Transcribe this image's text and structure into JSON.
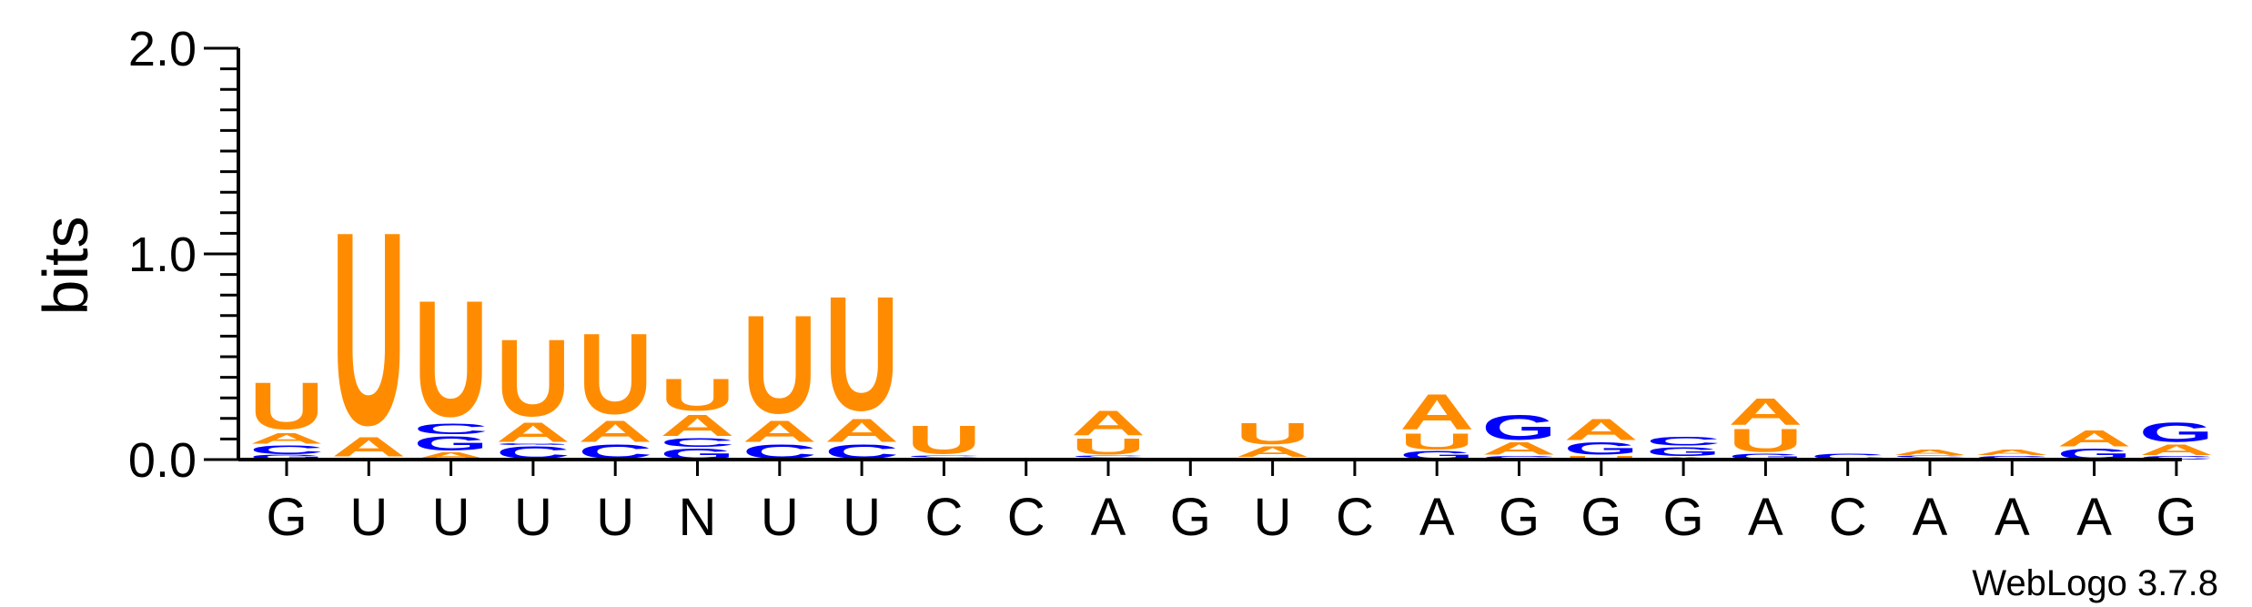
{
  "chart_data": {
    "type": "sequence-logo",
    "ylabel": "bits",
    "ylim": [
      0,
      2
    ],
    "yticks": [
      "0.0",
      "1.0",
      "2.0"
    ],
    "grid": false,
    "colors": {
      "A": "#ff8c00",
      "U": "#ff8c00",
      "C": "#0000ff",
      "G": "#0000ff"
    },
    "positions": [
      {
        "label": "G",
        "stack": [
          [
            "G",
            0.025
          ],
          [
            "C",
            0.05
          ],
          [
            "A",
            0.06
          ],
          [
            "U",
            0.26
          ]
        ]
      },
      {
        "label": "U",
        "stack": [
          [
            "G",
            0.01
          ],
          [
            "A",
            0.11
          ],
          [
            "U",
            1.08
          ]
        ]
      },
      {
        "label": "U",
        "stack": [
          [
            "A",
            0.04
          ],
          [
            "G",
            0.08
          ],
          [
            "C",
            0.06
          ],
          [
            "U",
            0.65
          ]
        ]
      },
      {
        "label": "U",
        "stack": [
          [
            "C",
            0.07
          ],
          [
            "G",
            0.01
          ],
          [
            "A",
            0.11
          ],
          [
            "U",
            0.43
          ]
        ]
      },
      {
        "label": "U",
        "stack": [
          [
            "C",
            0.08
          ],
          [
            "A",
            0.12
          ],
          [
            "U",
            0.45
          ]
        ]
      },
      {
        "label": "N",
        "stack": [
          [
            "G",
            0.06
          ],
          [
            "C",
            0.05
          ],
          [
            "A",
            0.12
          ],
          [
            "U",
            0.18
          ]
        ]
      },
      {
        "label": "U",
        "stack": [
          [
            "C",
            0.08
          ],
          [
            "A",
            0.12
          ],
          [
            "U",
            0.55
          ]
        ]
      },
      {
        "label": "U",
        "stack": [
          [
            "C",
            0.08
          ],
          [
            "A",
            0.13
          ],
          [
            "U",
            0.64
          ]
        ]
      },
      {
        "label": "C",
        "stack": [
          [
            "G",
            0.01
          ],
          [
            "C",
            0.01
          ],
          [
            "U",
            0.16
          ]
        ]
      },
      {
        "label": "C",
        "stack": []
      },
      {
        "label": "A",
        "stack": [
          [
            "G",
            0.01
          ],
          [
            "C",
            0.01
          ],
          [
            "U",
            0.09
          ],
          [
            "A",
            0.14
          ]
        ]
      },
      {
        "label": "G",
        "stack": []
      },
      {
        "label": "U",
        "stack": [
          [
            "C",
            0.01
          ],
          [
            "A",
            0.06
          ],
          [
            "U",
            0.12
          ]
        ]
      },
      {
        "label": "C",
        "stack": []
      },
      {
        "label": "A",
        "stack": [
          [
            "G",
            0.045
          ],
          [
            "U",
            0.09
          ],
          [
            "A",
            0.2
          ]
        ]
      },
      {
        "label": "G",
        "stack": [
          [
            "C",
            0.02
          ],
          [
            "A",
            0.07
          ],
          [
            "G",
            0.14
          ]
        ]
      },
      {
        "label": "G",
        "stack": [
          [
            "U",
            0.02
          ],
          [
            "G",
            0.07
          ],
          [
            "A",
            0.12
          ]
        ]
      },
      {
        "label": "G",
        "stack": [
          [
            "A",
            0.015
          ],
          [
            "G",
            0.05
          ],
          [
            "C",
            0.05
          ]
        ]
      },
      {
        "label": "A",
        "stack": [
          [
            "G",
            0.03
          ],
          [
            "U",
            0.13
          ],
          [
            "A",
            0.15
          ]
        ]
      },
      {
        "label": "C",
        "stack": [
          [
            "C",
            0.03
          ]
        ]
      },
      {
        "label": "A",
        "stack": [
          [
            "U",
            0.01
          ],
          [
            "C",
            0.01
          ],
          [
            "A",
            0.03
          ]
        ]
      },
      {
        "label": "A",
        "stack": [
          [
            "C",
            0.02
          ],
          [
            "A",
            0.03
          ]
        ]
      },
      {
        "label": "A",
        "stack": [
          [
            "G",
            0.06
          ],
          [
            "A",
            0.09
          ]
        ]
      },
      {
        "label": "G",
        "stack": [
          [
            "C",
            0.02
          ],
          [
            "A",
            0.06
          ],
          [
            "G",
            0.11
          ]
        ]
      }
    ]
  },
  "footer": {
    "brand": "WebLogo 3.7.8"
  }
}
